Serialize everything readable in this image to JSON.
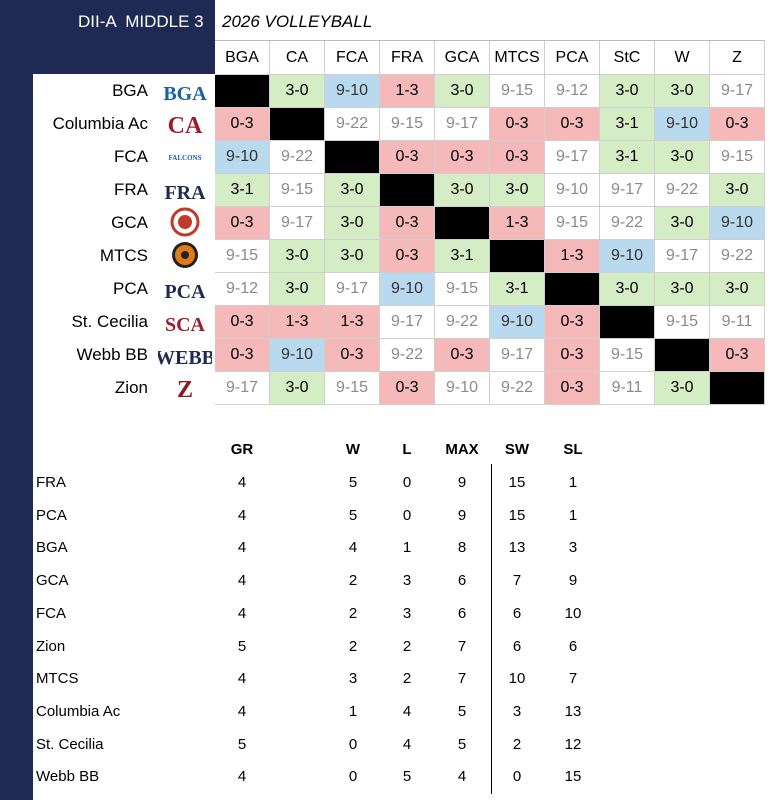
{
  "header": {
    "league": "DII-A  MIDDLE 3",
    "season": "2026 VOLLEYBALL"
  },
  "colors": {
    "win": "#d4edc4",
    "loss": "#f6b9ba",
    "tie": "#b9d9ef",
    "self": "#000000",
    "navy": "#1f2a54"
  },
  "columns": [
    "BGA",
    "CA",
    "FCA",
    "FRA",
    "GCA",
    "MTCS",
    "PCA",
    "StC",
    "W",
    "Z"
  ],
  "teams": [
    {
      "name": "BGA",
      "logo": "bga-logo",
      "logo_text": "BGA"
    },
    {
      "name": "Columbia Ac",
      "logo": "ca-logo",
      "logo_text": "CA"
    },
    {
      "name": "FCA",
      "logo": "fca-falcons-logo",
      "logo_text": "FALCONS"
    },
    {
      "name": "FRA",
      "logo": "fra-logo",
      "logo_text": "FRA"
    },
    {
      "name": "GCA",
      "logo": "gca-lion-logo",
      "logo_text": ""
    },
    {
      "name": "MTCS",
      "logo": "mtcs-tiger-logo",
      "logo_text": ""
    },
    {
      "name": "PCA",
      "logo": "pca-logo",
      "logo_text": "PCA"
    },
    {
      "name": "St. Cecilia",
      "logo": "sca-logo",
      "logo_text": "SCA"
    },
    {
      "name": "Webb BB",
      "logo": "webb-logo",
      "logo_text": "WEBB"
    },
    {
      "name": "Zion",
      "logo": "zion-logo",
      "logo_text": "Z"
    }
  ],
  "matrix": [
    [
      [
        "",
        "x"
      ],
      [
        "3-0",
        "w"
      ],
      [
        "9-10",
        "t"
      ],
      [
        "1-3",
        "l"
      ],
      [
        "3-0",
        "w"
      ],
      [
        "9-15",
        "n"
      ],
      [
        "9-12",
        "n"
      ],
      [
        "3-0",
        "w"
      ],
      [
        "3-0",
        "w"
      ],
      [
        "9-17",
        "n"
      ]
    ],
    [
      [
        "0-3",
        "l"
      ],
      [
        "",
        "x"
      ],
      [
        "9-22",
        "n"
      ],
      [
        "9-15",
        "n"
      ],
      [
        "9-17",
        "n"
      ],
      [
        "0-3",
        "l"
      ],
      [
        "0-3",
        "l"
      ],
      [
        "3-1",
        "w"
      ],
      [
        "9-10",
        "t"
      ],
      [
        "0-3",
        "l"
      ]
    ],
    [
      [
        "9-10",
        "t"
      ],
      [
        "9-22",
        "n"
      ],
      [
        "",
        "x"
      ],
      [
        "0-3",
        "l"
      ],
      [
        "0-3",
        "l"
      ],
      [
        "0-3",
        "l"
      ],
      [
        "9-17",
        "n"
      ],
      [
        "3-1",
        "w"
      ],
      [
        "3-0",
        "w"
      ],
      [
        "9-15",
        "n"
      ]
    ],
    [
      [
        "3-1",
        "w"
      ],
      [
        "9-15",
        "n"
      ],
      [
        "3-0",
        "w"
      ],
      [
        "",
        "x"
      ],
      [
        "3-0",
        "w"
      ],
      [
        "3-0",
        "w"
      ],
      [
        "9-10",
        "n"
      ],
      [
        "9-17",
        "n"
      ],
      [
        "9-22",
        "n"
      ],
      [
        "3-0",
        "w"
      ]
    ],
    [
      [
        "0-3",
        "l"
      ],
      [
        "9-17",
        "n"
      ],
      [
        "3-0",
        "w"
      ],
      [
        "0-3",
        "l"
      ],
      [
        "",
        "x"
      ],
      [
        "1-3",
        "l"
      ],
      [
        "9-15",
        "n"
      ],
      [
        "9-22",
        "n"
      ],
      [
        "3-0",
        "w"
      ],
      [
        "9-10",
        "t"
      ]
    ],
    [
      [
        "9-15",
        "n"
      ],
      [
        "3-0",
        "w"
      ],
      [
        "3-0",
        "w"
      ],
      [
        "0-3",
        "l"
      ],
      [
        "3-1",
        "w"
      ],
      [
        "",
        "x"
      ],
      [
        "1-3",
        "l"
      ],
      [
        "9-10",
        "t"
      ],
      [
        "9-17",
        "n"
      ],
      [
        "9-22",
        "n"
      ]
    ],
    [
      [
        "9-12",
        "n"
      ],
      [
        "3-0",
        "w"
      ],
      [
        "9-17",
        "n"
      ],
      [
        "9-10",
        "t"
      ],
      [
        "9-15",
        "n"
      ],
      [
        "3-1",
        "w"
      ],
      [
        "",
        "x"
      ],
      [
        "3-0",
        "w"
      ],
      [
        "3-0",
        "w"
      ],
      [
        "3-0",
        "w"
      ]
    ],
    [
      [
        "0-3",
        "l"
      ],
      [
        "1-3",
        "l"
      ],
      [
        "1-3",
        "l"
      ],
      [
        "9-17",
        "n"
      ],
      [
        "9-22",
        "n"
      ],
      [
        "9-10",
        "t"
      ],
      [
        "0-3",
        "l"
      ],
      [
        "",
        "x"
      ],
      [
        "9-15",
        "n"
      ],
      [
        "9-11",
        "n"
      ]
    ],
    [
      [
        "0-3",
        "l"
      ],
      [
        "9-10",
        "t"
      ],
      [
        "0-3",
        "l"
      ],
      [
        "9-22",
        "n"
      ],
      [
        "0-3",
        "l"
      ],
      [
        "9-17",
        "n"
      ],
      [
        "0-3",
        "l"
      ],
      [
        "9-15",
        "n"
      ],
      [
        "",
        "x"
      ],
      [
        "0-3",
        "l"
      ]
    ],
    [
      [
        "9-17",
        "n"
      ],
      [
        "3-0",
        "w"
      ],
      [
        "9-15",
        "n"
      ],
      [
        "0-3",
        "l"
      ],
      [
        "9-10",
        "n"
      ],
      [
        "9-22",
        "n"
      ],
      [
        "0-3",
        "l"
      ],
      [
        "9-11",
        "n"
      ],
      [
        "3-0",
        "w"
      ],
      [
        "",
        "x"
      ]
    ]
  ],
  "standings": {
    "headers": [
      "GR",
      "W",
      "L",
      "MAX",
      "SW",
      "SL"
    ],
    "rows": [
      {
        "team": "FRA",
        "values": [
          "4",
          "5",
          "0",
          "9",
          "15",
          "1"
        ]
      },
      {
        "team": "PCA",
        "values": [
          "4",
          "5",
          "0",
          "9",
          "15",
          "1"
        ]
      },
      {
        "team": "BGA",
        "values": [
          "4",
          "4",
          "1",
          "8",
          "13",
          "3"
        ]
      },
      {
        "team": "GCA",
        "values": [
          "4",
          "2",
          "3",
          "6",
          "7",
          "9"
        ]
      },
      {
        "team": "FCA",
        "values": [
          "4",
          "2",
          "3",
          "6",
          "6",
          "10"
        ]
      },
      {
        "team": "Zion",
        "values": [
          "5",
          "2",
          "2",
          "7",
          "6",
          "6"
        ]
      },
      {
        "team": "MTCS",
        "values": [
          "4",
          "3",
          "2",
          "7",
          "10",
          "7"
        ]
      },
      {
        "team": "Columbia Ac",
        "values": [
          "4",
          "1",
          "4",
          "5",
          "3",
          "13"
        ]
      },
      {
        "team": "St. Cecilia",
        "values": [
          "5",
          "0",
          "4",
          "5",
          "2",
          "12"
        ]
      },
      {
        "team": "Webb BB",
        "values": [
          "4",
          "0",
          "5",
          "4",
          "0",
          "15"
        ]
      }
    ]
  }
}
